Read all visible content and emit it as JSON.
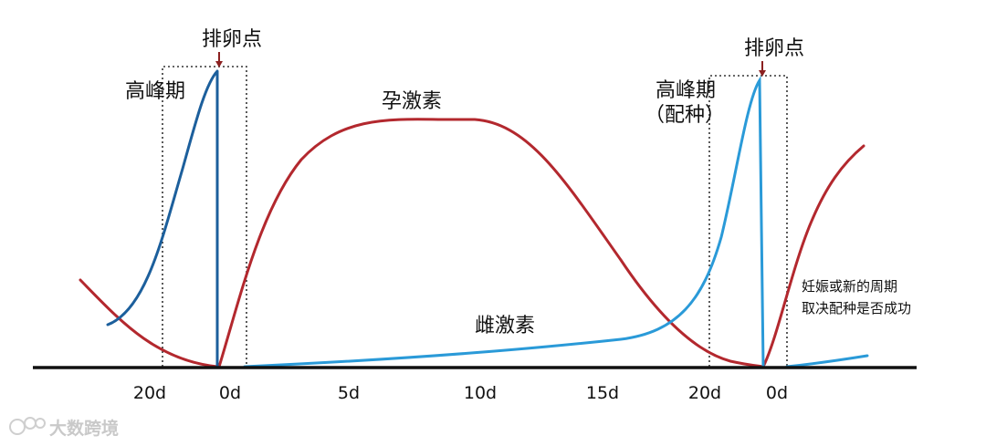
{
  "colors": {
    "progesterone": "#b3282e",
    "estrogen_first": "#1c5f9c",
    "estrogen_second": "#2a9ad8",
    "axis": "#111111",
    "box": "#333333"
  },
  "labels": {
    "ovulation_left": "排卵点",
    "ovulation_right": "排卵点",
    "peak_left": "高峰期",
    "peak_right_line1": "高峰期",
    "peak_right_line2": "（配种）",
    "progesterone": "孕激素",
    "estrogen": "雌激素",
    "note_line1": "妊娠或新的周期",
    "note_line2": "取决配种是否成功"
  },
  "ticks": [
    "20d",
    "0d",
    "5d",
    "10d",
    "15d",
    "20d",
    "0d"
  ],
  "watermark": "大数跨境"
}
